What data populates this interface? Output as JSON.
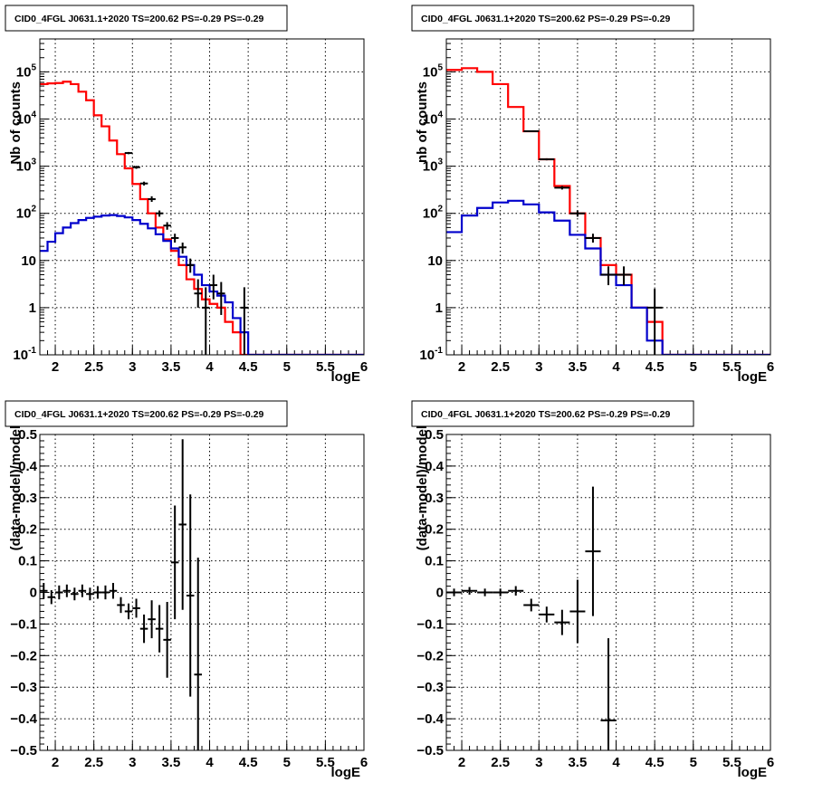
{
  "chart_data": [
    {
      "type": "line",
      "title": "CID0_4FGL J0631.1+2020 TS=200.62 PS=-0.29 PS=-0.29",
      "xlabel": "logE",
      "ylabel": "Nb of counts",
      "xscale": "linear",
      "yscale": "log",
      "xlim": [
        1.8,
        6.0
      ],
      "ylim": [
        0.1,
        500000
      ],
      "x_ticks": [
        "2",
        "2.5",
        "3",
        "3.5",
        "4",
        "4.5",
        "5",
        "5.5",
        "6"
      ],
      "y_ticks": [
        "10^-1",
        "1",
        "10",
        "10^2",
        "10^3",
        "10^4",
        "10^5"
      ],
      "grid": true,
      "bin_edges": [
        1.8,
        1.9,
        2.0,
        2.1,
        2.2,
        2.3,
        2.4,
        2.5,
        2.6,
        2.7,
        2.8,
        2.9,
        3.0,
        3.1,
        3.2,
        3.3,
        3.4,
        3.5,
        3.6,
        3.7,
        3.8,
        3.9,
        4.0,
        4.1,
        4.2,
        4.3,
        4.4,
        4.5,
        4.6,
        4.7,
        4.8,
        4.9,
        5.0,
        5.1,
        5.2,
        5.3,
        5.4,
        5.5,
        5.6,
        5.7,
        5.8,
        5.9,
        6.0
      ],
      "series": [
        {
          "color": "#ff0000",
          "style": "step",
          "values": [
            55000,
            57000,
            58000,
            62000,
            55000,
            38000,
            25000,
            12000,
            7000,
            3500,
            1800,
            900,
            420,
            200,
            100,
            50,
            28,
            16,
            8,
            4,
            2.5,
            1.5,
            1.2,
            1.0,
            0.5,
            0.3,
            0.1,
            0.1,
            0.1,
            0.1,
            0.1,
            0.1,
            0.1,
            0.1,
            0.1,
            0.1,
            0.1,
            0.1,
            0.1,
            0.1,
            0.1,
            0.1
          ]
        },
        {
          "color": "#0000cc",
          "style": "step",
          "values": [
            16,
            25,
            38,
            50,
            62,
            72,
            80,
            85,
            90,
            92,
            88,
            82,
            72,
            60,
            48,
            36,
            26,
            18,
            12,
            8,
            5,
            3,
            2.2,
            1.8,
            1.3,
            0.6,
            0.3,
            0.1,
            0.1,
            0.1,
            0.1,
            0.1,
            0.1,
            0.1,
            0.1,
            0.1,
            0.1,
            0.1,
            0.1,
            0.1,
            0.1,
            0.1
          ]
        },
        {
          "color": "#000000",
          "style": "errorbar",
          "points": [
            {
              "x": 2.95,
              "y": 1900,
              "lo": 1800,
              "hi": 2000,
              "xerr": 0.05
            },
            {
              "x": 3.05,
              "y": 950,
              "lo": 880,
              "hi": 1020,
              "xerr": 0.05
            },
            {
              "x": 3.15,
              "y": 430,
              "lo": 390,
              "hi": 470,
              "xerr": 0.05
            },
            {
              "x": 3.25,
              "y": 200,
              "lo": 175,
              "hi": 230,
              "xerr": 0.05
            },
            {
              "x": 3.35,
              "y": 100,
              "lo": 85,
              "hi": 115,
              "xerr": 0.05
            },
            {
              "x": 3.45,
              "y": 55,
              "lo": 45,
              "hi": 65,
              "xerr": 0.05
            },
            {
              "x": 3.55,
              "y": 30,
              "lo": 24,
              "hi": 37,
              "xerr": 0.05
            },
            {
              "x": 3.65,
              "y": 19,
              "lo": 14,
              "hi": 24,
              "xerr": 0.05
            },
            {
              "x": 3.75,
              "y": 8,
              "lo": 5.5,
              "hi": 11,
              "xerr": 0.05
            },
            {
              "x": 3.85,
              "y": 2,
              "lo": 1,
              "hi": 4,
              "xerr": 0.05
            },
            {
              "x": 3.95,
              "y": 1,
              "lo": 0.1,
              "hi": 2.7,
              "xerr": 0.05
            },
            {
              "x": 4.05,
              "y": 3,
              "lo": 1.5,
              "hi": 5,
              "xerr": 0.05
            },
            {
              "x": 4.15,
              "y": 2,
              "lo": 0.7,
              "hi": 3.5,
              "xerr": 0.05
            },
            {
              "x": 4.45,
              "y": 1,
              "lo": 0.1,
              "hi": 2.7,
              "xerr": 0.05
            }
          ]
        }
      ]
    },
    {
      "type": "line",
      "title": "CID0_4FGL J0631.1+2020 TS=200.62 PS=-0.29 PS=-0.29",
      "xlabel": "logE",
      "ylabel": "nb of counts",
      "xscale": "linear",
      "yscale": "log",
      "xlim": [
        1.8,
        6.0
      ],
      "ylim": [
        0.1,
        500000
      ],
      "x_ticks": [
        "2",
        "2.5",
        "3",
        "3.5",
        "4",
        "4.5",
        "5",
        "5.5",
        "6"
      ],
      "y_ticks": [
        "10^-1",
        "1",
        "10",
        "10^2",
        "10^3",
        "10^4",
        "10^5"
      ],
      "grid": true,
      "bin_edges": [
        1.8,
        2.0,
        2.2,
        2.4,
        2.6,
        2.8,
        3.0,
        3.2,
        3.4,
        3.6,
        3.8,
        4.0,
        4.2,
        4.4,
        4.6,
        4.8,
        5.0,
        5.2,
        5.4,
        5.6,
        5.8,
        6.0
      ],
      "series": [
        {
          "color": "#ff0000",
          "style": "step",
          "values": [
            110000,
            120000,
            100000,
            55000,
            18000,
            5500,
            1400,
            380,
            100,
            30,
            8,
            5,
            1,
            0.5,
            0.1,
            0.1,
            0.1,
            0.1,
            0.1,
            0.1,
            0.1
          ]
        },
        {
          "color": "#0000cc",
          "style": "step",
          "values": [
            40,
            90,
            130,
            170,
            185,
            155,
            105,
            70,
            35,
            18,
            5,
            3,
            1,
            0.2,
            0.1,
            0.1,
            0.1,
            0.1,
            0.1,
            0.1,
            0.1
          ]
        },
        {
          "color": "#000000",
          "style": "errorbar",
          "points": [
            {
              "x": 2.9,
              "y": 5500,
              "lo": 5300,
              "hi": 5700,
              "xerr": 0.1
            },
            {
              "x": 3.1,
              "y": 1400,
              "lo": 1330,
              "hi": 1470,
              "xerr": 0.1
            },
            {
              "x": 3.3,
              "y": 350,
              "lo": 320,
              "hi": 380,
              "xerr": 0.1
            },
            {
              "x": 3.5,
              "y": 100,
              "lo": 85,
              "hi": 115,
              "xerr": 0.1
            },
            {
              "x": 3.7,
              "y": 30,
              "lo": 24,
              "hi": 37,
              "xerr": 0.1
            },
            {
              "x": 3.9,
              "y": 5,
              "lo": 3,
              "hi": 7.5,
              "xerr": 0.1
            },
            {
              "x": 4.1,
              "y": 5,
              "lo": 3,
              "hi": 7.5,
              "xerr": 0.1
            },
            {
              "x": 4.5,
              "y": 1,
              "lo": 0.1,
              "hi": 2.5,
              "xerr": 0.1
            }
          ]
        }
      ]
    },
    {
      "type": "scatter",
      "title": "CID0_4FGL J0631.1+2020 TS=200.62 PS=-0.29 PS=-0.29",
      "xlabel": "logE",
      "ylabel": "(data-model)/model",
      "xscale": "linear",
      "yscale": "linear",
      "xlim": [
        1.8,
        6.0
      ],
      "ylim": [
        -0.5,
        0.5
      ],
      "x_ticks": [
        "2",
        "2.5",
        "3",
        "3.5",
        "4",
        "4.5",
        "5",
        "5.5",
        "6"
      ],
      "y_ticks": [
        "−0.5",
        "−0.4",
        "−0.3",
        "−0.2",
        "−0.1",
        "0",
        "0.1",
        "0.2",
        "0.3",
        "0.4",
        "0.5"
      ],
      "grid": true,
      "series": [
        {
          "color": "#000000",
          "style": "errorbar",
          "points": [
            {
              "x": 1.85,
              "y": 0.005,
              "err": 0.025,
              "xerr": 0.05
            },
            {
              "x": 1.95,
              "y": -0.015,
              "err": 0.022,
              "xerr": 0.05
            },
            {
              "x": 2.05,
              "y": 0.0,
              "err": 0.022,
              "xerr": 0.05
            },
            {
              "x": 2.15,
              "y": 0.005,
              "err": 0.02,
              "xerr": 0.05
            },
            {
              "x": 2.25,
              "y": -0.005,
              "err": 0.02,
              "xerr": 0.05
            },
            {
              "x": 2.35,
              "y": 0.005,
              "err": 0.02,
              "xerr": 0.05
            },
            {
              "x": 2.45,
              "y": -0.005,
              "err": 0.02,
              "xerr": 0.05
            },
            {
              "x": 2.55,
              "y": 0.0,
              "err": 0.02,
              "xerr": 0.05
            },
            {
              "x": 2.65,
              "y": 0.0,
              "err": 0.022,
              "xerr": 0.05
            },
            {
              "x": 2.75,
              "y": 0.005,
              "err": 0.025,
              "xerr": 0.05
            },
            {
              "x": 2.85,
              "y": -0.04,
              "err": 0.025,
              "xerr": 0.05
            },
            {
              "x": 2.95,
              "y": -0.06,
              "err": 0.025,
              "xerr": 0.05
            },
            {
              "x": 3.05,
              "y": -0.05,
              "err": 0.03,
              "xerr": 0.05
            },
            {
              "x": 3.15,
              "y": -0.115,
              "err": 0.045,
              "xerr": 0.05
            },
            {
              "x": 3.25,
              "y": -0.085,
              "err": 0.06,
              "xerr": 0.05
            },
            {
              "x": 3.35,
              "y": -0.115,
              "err": 0.075,
              "xerr": 0.05
            },
            {
              "x": 3.45,
              "y": -0.15,
              "err": 0.12,
              "xerr": 0.05
            },
            {
              "x": 3.55,
              "y": 0.095,
              "err": 0.18,
              "xerr": 0.05
            },
            {
              "x": 3.65,
              "y": 0.215,
              "err": 0.27,
              "xerr": 0.05
            },
            {
              "x": 3.75,
              "y": -0.01,
              "err": 0.32,
              "xerr": 0.05
            },
            {
              "x": 3.85,
              "y": -0.26,
              "err": 0.37,
              "xerr": 0.05
            }
          ]
        }
      ]
    },
    {
      "type": "scatter",
      "title": "CID0_4FGL J0631.1+2020 TS=200.62 PS=-0.29 PS=-0.29",
      "xlabel": "logE",
      "ylabel": "(data-model)/model",
      "xscale": "linear",
      "yscale": "linear",
      "xlim": [
        1.8,
        6.0
      ],
      "ylim": [
        -0.5,
        0.5
      ],
      "x_ticks": [
        "2",
        "2.5",
        "3",
        "3.5",
        "4",
        "4.5",
        "5",
        "5.5",
        "6"
      ],
      "y_ticks": [
        "−0.5",
        "−0.4",
        "−0.3",
        "−0.2",
        "−0.1",
        "0",
        "0.1",
        "0.2",
        "0.3",
        "0.4",
        "0.5"
      ],
      "grid": true,
      "series": [
        {
          "color": "#000000",
          "style": "errorbar",
          "points": [
            {
              "x": 1.9,
              "y": 0.0,
              "err": 0.012,
              "xerr": 0.1
            },
            {
              "x": 2.1,
              "y": 0.005,
              "err": 0.012,
              "xerr": 0.1
            },
            {
              "x": 2.3,
              "y": 0.0,
              "err": 0.012,
              "xerr": 0.1
            },
            {
              "x": 2.5,
              "y": 0.0,
              "err": 0.012,
              "xerr": 0.1
            },
            {
              "x": 2.7,
              "y": 0.005,
              "err": 0.015,
              "xerr": 0.1
            },
            {
              "x": 2.9,
              "y": -0.04,
              "err": 0.02,
              "xerr": 0.1
            },
            {
              "x": 3.1,
              "y": -0.07,
              "err": 0.025,
              "xerr": 0.1
            },
            {
              "x": 3.3,
              "y": -0.095,
              "err": 0.04,
              "xerr": 0.1
            },
            {
              "x": 3.5,
              "y": -0.06,
              "err": 0.1,
              "xerr": 0.1
            },
            {
              "x": 3.7,
              "y": 0.13,
              "err": 0.205,
              "xerr": 0.1
            },
            {
              "x": 3.9,
              "y": -0.405,
              "err": 0.26,
              "xerr": 0.1
            }
          ]
        }
      ]
    }
  ]
}
